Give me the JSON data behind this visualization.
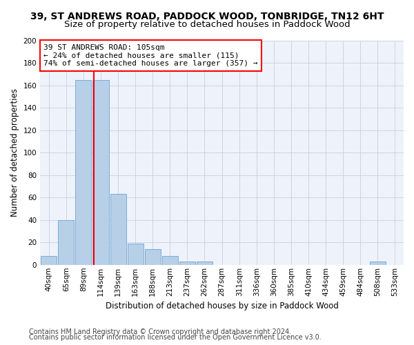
{
  "title1": "39, ST ANDREWS ROAD, PADDOCK WOOD, TONBRIDGE, TN12 6HT",
  "title2": "Size of property relative to detached houses in Paddock Wood",
  "xlabel": "Distribution of detached houses by size in Paddock Wood",
  "ylabel": "Number of detached properties",
  "footer1": "Contains HM Land Registry data © Crown copyright and database right 2024.",
  "footer2": "Contains public sector information licensed under the Open Government Licence v3.0.",
  "bin_labels": [
    "40sqm",
    "65sqm",
    "89sqm",
    "114sqm",
    "139sqm",
    "163sqm",
    "188sqm",
    "213sqm",
    "237sqm",
    "262sqm",
    "287sqm",
    "311sqm",
    "336sqm",
    "360sqm",
    "385sqm",
    "410sqm",
    "434sqm",
    "459sqm",
    "484sqm",
    "508sqm",
    "533sqm"
  ],
  "bar_values": [
    8,
    40,
    165,
    165,
    63,
    19,
    14,
    8,
    3,
    3,
    0,
    0,
    0,
    0,
    0,
    0,
    0,
    0,
    0,
    3,
    0
  ],
  "bar_color": "#b8cfe8",
  "bar_edge_color": "#7aadd6",
  "property_line_value": 2.6,
  "annotation_line1": "39 ST ANDREWS ROAD: 105sqm",
  "annotation_line2": "← 24% of detached houses are smaller (115)",
  "annotation_line3": "74% of semi-detached houses are larger (357) →",
  "annotation_box_color": "white",
  "annotation_box_edge": "red",
  "line_color": "red",
  "ylim": [
    0,
    200
  ],
  "yticks": [
    0,
    20,
    40,
    60,
    80,
    100,
    120,
    140,
    160,
    180,
    200
  ],
  "background_color": "#eef2fb",
  "grid_color": "#c8cfe0",
  "title1_fontsize": 10,
  "title2_fontsize": 9.5,
  "xlabel_fontsize": 8.5,
  "ylabel_fontsize": 8.5,
  "tick_fontsize": 7.5,
  "annotation_fontsize": 8,
  "footer_fontsize": 7
}
